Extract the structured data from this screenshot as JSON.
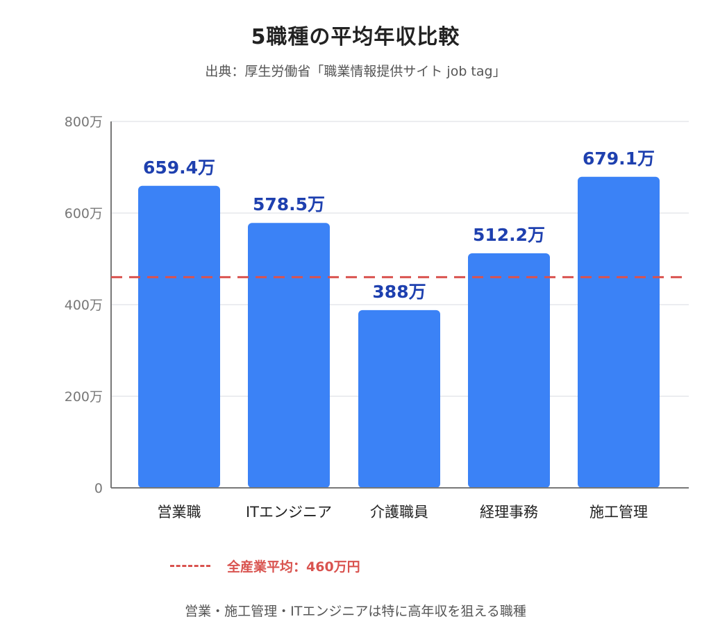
{
  "title": "5職種の平均年収比較",
  "subtitle": "出典：厚生労働省「職業情報提供サイト job tag」",
  "chart_data": {
    "type": "bar",
    "categories": [
      "営業職",
      "ITエンジニア",
      "介護職員",
      "経理事務",
      "施工管理"
    ],
    "values": [
      659.4,
      578.5,
      388,
      512.2,
      679.1
    ],
    "value_labels": [
      "659.4万",
      "578.5万",
      "388万",
      "512.2万",
      "679.1万"
    ],
    "ylim": [
      0,
      800
    ],
    "yticks": [
      0,
      200,
      400,
      600,
      800
    ],
    "ytick_labels": [
      "0",
      "200万",
      "400万",
      "600万",
      "800万"
    ],
    "grid": true,
    "reference_line": {
      "value": 460,
      "label": "全産業平均：460万円",
      "style": "dashed"
    },
    "legend_placement": "bottom"
  },
  "colors": {
    "bar": "#3b82f6",
    "value_label": "#1e40af",
    "reference": "#d9534f",
    "grid": "#e5e7eb",
    "axis": "#777777",
    "tick_label": "#777777",
    "category_label": "#222222"
  },
  "note": "営業・施工管理・ITエンジニアは特に高年収を狙える職種"
}
